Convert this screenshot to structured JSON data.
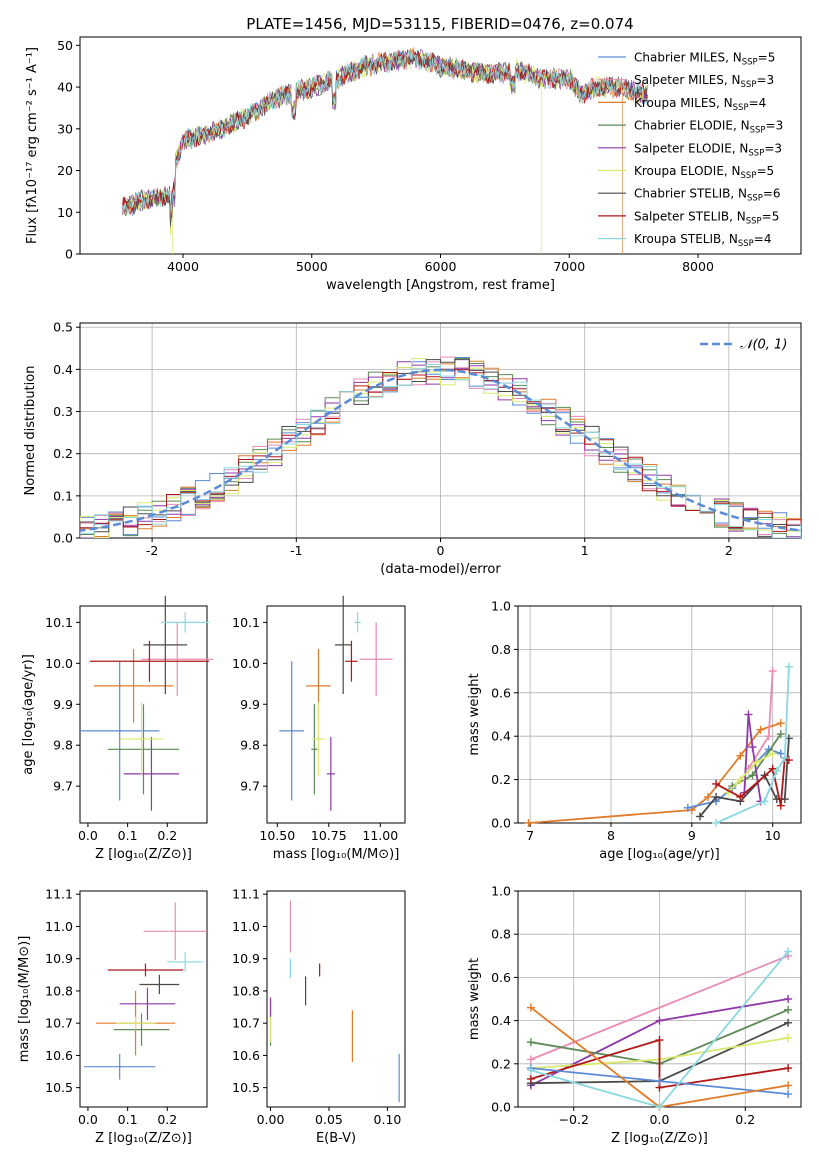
{
  "title": "PLATE=1456, MJD=53115, FIBERID=0476, z=0.074",
  "colors": {
    "chab_miles": "#5b8bd6",
    "salp_miles": "#e88cb5",
    "krou_miles": "#e07b2a",
    "chab_elodie": "#5d8a55",
    "salp_elodie": "#8f38a8",
    "krou_elodie": "#d9e86a",
    "chab_stelib": "#4a4a4a",
    "salp_stelib": "#b01818",
    "krou_stelib": "#8ad8e0",
    "axis": "#000000",
    "grid": "#b0b0b0"
  },
  "chart_data": [
    {
      "id": "spectrum",
      "type": "line",
      "xlabel": "wavelength [Angstrom, rest frame]",
      "ylabel": "Flux [fλ10⁻¹⁷ erg cm⁻² s⁻¹ A⁻¹]",
      "xlim": [
        3200,
        8800
      ],
      "ylim": [
        0,
        52
      ],
      "xticks": [
        4000,
        5000,
        6000,
        7000,
        8000
      ],
      "yticks": [
        0,
        10,
        20,
        30,
        40,
        50
      ],
      "grid": false,
      "legend_position": "top-right",
      "continuum": {
        "x": [
          3530,
          3700,
          3900,
          3920,
          4000,
          4100,
          4300,
          4500,
          4700,
          5000,
          5200,
          5400,
          5600,
          5800,
          6000,
          6200,
          6400,
          6600,
          6800,
          7000,
          7100,
          7200,
          7400,
          7600
        ],
        "y": [
          11,
          13,
          14,
          20,
          27,
          28,
          30,
          33,
          37,
          40,
          42,
          45,
          46,
          47,
          45,
          44,
          43,
          44,
          42,
          42,
          38,
          40,
          40,
          38
        ]
      },
      "series": [
        {
          "name": "Chabrier MILES, N_SSP=5",
          "label_main": "Chabrier MILES, N",
          "label_sub": "SSP",
          "label_tail": "=5",
          "color_key": "chab_miles"
        },
        {
          "name": "Salpeter MILES, N_SSP=3",
          "label_main": "Salpeter MILES, N",
          "label_sub": "SSP",
          "label_tail": "=3",
          "color_key": "salp_miles"
        },
        {
          "name": "Kroupa MILES, N_SSP=4",
          "label_main": "Kroupa MILES, N",
          "label_sub": "SSP",
          "label_tail": "=4",
          "color_key": "krou_miles"
        },
        {
          "name": "Chabrier ELODIE, N_SSP=3",
          "label_main": "Chabrier ELODIE, N",
          "label_sub": "SSP",
          "label_tail": "=3",
          "color_key": "chab_elodie"
        },
        {
          "name": "Salpeter ELODIE, N_SSP=3",
          "label_main": "Salpeter ELODIE, N",
          "label_sub": "SSP",
          "label_tail": "=3",
          "color_key": "salp_elodie"
        },
        {
          "name": "Kroupa ELODIE, N_SSP=5",
          "label_main": "Kroupa ELODIE, N",
          "label_sub": "SSP",
          "label_tail": "=5",
          "color_key": "krou_elodie"
        },
        {
          "name": "Chabrier STELIB, N_SSP=6",
          "label_main": "Chabrier STELIB, N",
          "label_sub": "SSP",
          "label_tail": "=6",
          "color_key": "chab_stelib"
        },
        {
          "name": "Salpeter STELIB, N_SSP=5",
          "label_main": "Salpeter STELIB, N",
          "label_sub": "SSP",
          "label_tail": "=5",
          "color_key": "salp_stelib"
        },
        {
          "name": "Kroupa STELIB, N_SSP=4",
          "label_main": "Kroupa STELIB, N",
          "label_sub": "SSP",
          "label_tail": "=4",
          "color_key": "krou_stelib"
        }
      ],
      "drops": [
        {
          "x": 3920,
          "color_key": "krou_elodie"
        },
        {
          "x": 6780,
          "color_key": "krou_elodie"
        },
        {
          "x": 7410,
          "color_key": "krou_miles"
        }
      ]
    },
    {
      "id": "residuals",
      "type": "histogram",
      "xlabel": "(data-model)/error",
      "ylabel": "Normed distribution",
      "xlim": [
        -2.5,
        2.5
      ],
      "ylim": [
        0,
        0.51
      ],
      "xticks": [
        -2,
        -1,
        0,
        1,
        2
      ],
      "yticks": [
        0.0,
        0.1,
        0.2,
        0.3,
        0.4,
        0.5
      ],
      "grid": true,
      "bin_width": 0.1,
      "legend": "𝒩(0, 1)",
      "legend_position": "top-right",
      "gaussian": {
        "mean": 0,
        "sigma": 1,
        "color": "#5b8bd6"
      }
    },
    {
      "id": "z_age",
      "type": "errorbar",
      "xlabel": "Z [log₁₀(Z/Z⊙)]",
      "ylabel": "age  [log₁₀(age/yr)]",
      "xlim": [
        -0.02,
        0.3
      ],
      "ylim": [
        9.61,
        10.14
      ],
      "xticks": [
        0.0,
        0.1,
        0.2
      ],
      "yticks": [
        9.7,
        9.8,
        9.9,
        10.0,
        10.1
      ],
      "points": [
        {
          "color_key": "chab_miles",
          "x": 0.08,
          "xerr": 0.1,
          "y": 9.835,
          "yerr": 0.17
        },
        {
          "color_key": "salp_miles",
          "x": 0.225,
          "xerr": 0.09,
          "y": 10.01,
          "yerr": 0.09
        },
        {
          "color_key": "krou_miles",
          "x": 0.115,
          "xerr": 0.1,
          "y": 9.945,
          "yerr": 0.09
        },
        {
          "color_key": "chab_elodie",
          "x": 0.14,
          "xerr": 0.09,
          "y": 9.79,
          "yerr": 0.11
        },
        {
          "color_key": "salp_elodie",
          "x": 0.16,
          "xerr": 0.07,
          "y": 9.73,
          "yerr": 0.09
        },
        {
          "color_key": "krou_elodie",
          "x": 0.135,
          "xerr": 0.055,
          "y": 9.815,
          "yerr": 0.09
        },
        {
          "color_key": "chab_stelib",
          "x": 0.195,
          "xerr": 0.055,
          "y": 10.045,
          "yerr": 0.12
        },
        {
          "color_key": "salp_stelib",
          "x": 0.155,
          "xerr": 0.15,
          "y": 10.005,
          "yerr": 0.05
        },
        {
          "color_key": "krou_stelib",
          "x": 0.245,
          "xerr": 0.06,
          "y": 10.1,
          "yerr": 0.025
        }
      ]
    },
    {
      "id": "mass_age",
      "type": "errorbar",
      "xlabel": "mass [log₁₀(M/M⊙)]",
      "ylabel": "",
      "xlim": [
        10.45,
        11.12
      ],
      "ylim": [
        9.61,
        10.14
      ],
      "xticks": [
        10.5,
        10.75,
        11.0
      ],
      "xtick_labels": [
        "10.50",
        "10.75",
        "11.00"
      ],
      "yticks": [
        9.7,
        9.8,
        9.9,
        10.0,
        10.1
      ],
      "points": [
        {
          "color_key": "chab_miles",
          "x": 10.57,
          "xerr": 0.06,
          "y": 9.835,
          "yerr": 0.17
        },
        {
          "color_key": "salp_miles",
          "x": 10.98,
          "xerr": 0.08,
          "y": 10.01,
          "yerr": 0.09
        },
        {
          "color_key": "krou_miles",
          "x": 10.7,
          "xerr": 0.06,
          "y": 9.945,
          "yerr": 0.09
        },
        {
          "color_key": "chab_elodie",
          "x": 10.68,
          "xerr": 0.015,
          "y": 9.79,
          "yerr": 0.11
        },
        {
          "color_key": "salp_elodie",
          "x": 10.76,
          "xerr": 0.02,
          "y": 9.73,
          "yerr": 0.09
        },
        {
          "color_key": "krou_elodie",
          "x": 10.7,
          "xerr": 0.03,
          "y": 9.815,
          "yerr": 0.09
        },
        {
          "color_key": "chab_stelib",
          "x": 10.82,
          "xerr": 0.04,
          "y": 10.045,
          "yerr": 0.12
        },
        {
          "color_key": "salp_stelib",
          "x": 10.86,
          "xerr": 0.03,
          "y": 10.005,
          "yerr": 0.05
        },
        {
          "color_key": "krou_stelib",
          "x": 10.89,
          "xerr": 0.015,
          "y": 10.1,
          "yerr": 0.025
        }
      ]
    },
    {
      "id": "age_weight",
      "type": "line",
      "xlabel": "age  [log₁₀(age/yr)]",
      "ylabel": "mass weight",
      "xlim": [
        6.85,
        10.35
      ],
      "ylim": [
        0,
        1.0
      ],
      "xticks": [
        7,
        8,
        9,
        10
      ],
      "yticks": [
        0.0,
        0.2,
        0.4,
        0.6,
        0.8,
        1.0
      ],
      "grid": true,
      "lines": [
        {
          "color_key": "krou_miles",
          "x": [
            6.98,
            9.0,
            9.2,
            9.6,
            9.85,
            10.1
          ],
          "y": [
            0.0,
            0.06,
            0.12,
            0.31,
            0.43,
            0.46
          ]
        },
        {
          "color_key": "chab_miles",
          "x": [
            8.95,
            9.3,
            9.5,
            9.95,
            10.1
          ],
          "y": [
            0.07,
            0.1,
            0.16,
            0.34,
            0.32
          ]
        },
        {
          "color_key": "salp_miles",
          "x": [
            9.7,
            9.95,
            10.0
          ],
          "y": [
            0.25,
            0.4,
            0.7
          ]
        },
        {
          "color_key": "chab_elodie",
          "x": [
            9.5,
            9.75,
            10.1
          ],
          "y": [
            0.17,
            0.22,
            0.41
          ]
        },
        {
          "color_key": "salp_elodie",
          "x": [
            9.65,
            9.7,
            9.75,
            9.85
          ],
          "y": [
            0.14,
            0.5,
            0.35,
            0.1
          ]
        },
        {
          "color_key": "krou_elodie",
          "x": [
            9.45,
            9.6,
            9.8,
            10.0
          ],
          "y": [
            0.14,
            0.2,
            0.28,
            0.32
          ]
        },
        {
          "color_key": "chab_stelib",
          "x": [
            9.1,
            9.3,
            9.6,
            9.9,
            10.05,
            10.15,
            10.2
          ],
          "y": [
            0.03,
            0.12,
            0.1,
            0.22,
            0.11,
            0.11,
            0.39
          ]
        },
        {
          "color_key": "salp_stelib",
          "x": [
            9.3,
            9.6,
            10.0,
            10.1,
            10.15,
            10.2
          ],
          "y": [
            0.18,
            0.12,
            0.25,
            0.08,
            0.3,
            0.29
          ]
        },
        {
          "color_key": "krou_stelib",
          "x": [
            9.3,
            9.9,
            10.05,
            10.15,
            10.2
          ],
          "y": [
            0.0,
            0.1,
            0.24,
            0.3,
            0.72
          ]
        }
      ]
    },
    {
      "id": "z_mass",
      "type": "errorbar",
      "xlabel": "Z [log₁₀(Z/Z⊙)]",
      "ylabel": "mass [log₁₀(M/M⊙)]",
      "xlim": [
        -0.02,
        0.3
      ],
      "ylim": [
        10.44,
        11.11
      ],
      "xticks": [
        0.0,
        0.1,
        0.2
      ],
      "yticks": [
        10.5,
        10.6,
        10.7,
        10.8,
        10.9,
        11.0,
        11.1
      ],
      "points": [
        {
          "color_key": "chab_miles",
          "x": 0.08,
          "xerr": 0.09,
          "y": 10.565,
          "yerr": 0.04
        },
        {
          "color_key": "salp_miles",
          "x": 0.22,
          "xerr": 0.08,
          "y": 10.985,
          "yerr": 0.09
        },
        {
          "color_key": "krou_miles",
          "x": 0.12,
          "xerr": 0.1,
          "y": 10.7,
          "yerr": 0.1
        },
        {
          "color_key": "chab_elodie",
          "x": 0.135,
          "xerr": 0.07,
          "y": 10.68,
          "yerr": 0.05
        },
        {
          "color_key": "salp_elodie",
          "x": 0.15,
          "xerr": 0.07,
          "y": 10.76,
          "yerr": 0.05
        },
        {
          "color_key": "krou_elodie",
          "x": 0.12,
          "xerr": 0.05,
          "y": 10.7,
          "yerr": 0.02
        },
        {
          "color_key": "chab_stelib",
          "x": 0.18,
          "xerr": 0.05,
          "y": 10.82,
          "yerr": 0.03
        },
        {
          "color_key": "salp_stelib",
          "x": 0.145,
          "xerr": 0.095,
          "y": 10.865,
          "yerr": 0.02
        },
        {
          "color_key": "krou_stelib",
          "x": 0.245,
          "xerr": 0.045,
          "y": 10.89,
          "yerr": 0.03
        }
      ]
    },
    {
      "id": "ebv_mass",
      "type": "errorbar",
      "xlabel": "E(B-V)",
      "ylabel": "",
      "xlim": [
        -0.003,
        0.115
      ],
      "ylim": [
        10.44,
        11.11
      ],
      "xticks": [
        0.0,
        0.05,
        0.1
      ],
      "xtick_labels": [
        "0.00",
        "0.05",
        "0.10"
      ],
      "yticks": [
        10.5,
        10.6,
        10.7,
        10.8,
        10.9,
        11.0,
        11.1
      ],
      "points": [
        {
          "color_key": "chab_miles",
          "x": 0.11,
          "y": 10.53,
          "yerr": 0.075
        },
        {
          "color_key": "salp_miles",
          "x": 0.017,
          "y": 11.0,
          "yerr": 0.08
        },
        {
          "color_key": "krou_miles",
          "x": 0.07,
          "y": 10.66,
          "yerr": 0.08
        },
        {
          "color_key": "chab_elodie",
          "x": 0.0,
          "y": 10.7,
          "yerr": 0.07
        },
        {
          "color_key": "salp_elodie",
          "x": 0.0,
          "y": 10.75,
          "yerr": 0.03
        },
        {
          "color_key": "krou_elodie",
          "x": 0.0,
          "y": 10.68,
          "yerr": 0.04
        },
        {
          "color_key": "chab_stelib",
          "x": 0.03,
          "y": 10.8,
          "yerr": 0.045
        },
        {
          "color_key": "salp_stelib",
          "x": 0.042,
          "y": 10.865,
          "yerr": 0.02
        },
        {
          "color_key": "krou_stelib",
          "x": 0.017,
          "y": 10.87,
          "yerr": 0.03
        }
      ]
    },
    {
      "id": "z_weight",
      "type": "line",
      "xlabel": "Z [log₁₀(Z/Z⊙)]",
      "ylabel": "mass weight",
      "xlim": [
        -0.33,
        0.33
      ],
      "ylim": [
        0,
        1.0
      ],
      "xticks": [
        -0.2,
        0.0,
        0.2
      ],
      "xtick_labels": [
        "−0.2",
        "0.0",
        "0.2"
      ],
      "yticks": [
        0.0,
        0.2,
        0.4,
        0.6,
        0.8,
        1.0
      ],
      "grid": true,
      "lines": [
        {
          "color_key": "salp_miles",
          "x": [
            -0.3,
            0.3
          ],
          "y": [
            0.22,
            0.7
          ]
        },
        {
          "color_key": "salp_elodie",
          "x": [
            -0.3,
            0.0,
            0.3
          ],
          "y": [
            0.1,
            0.4,
            0.5
          ]
        },
        {
          "color_key": "chab_elodie",
          "x": [
            -0.3,
            0.0,
            0.3
          ],
          "y": [
            0.3,
            0.2,
            0.45
          ]
        },
        {
          "color_key": "chab_stelib",
          "x": [
            -0.3,
            0.0,
            0.3
          ],
          "y": [
            0.11,
            0.12,
            0.39
          ]
        },
        {
          "color_key": "krou_elodie",
          "x": [
            -0.3,
            0.0,
            0.3
          ],
          "y": [
            0.18,
            0.22,
            0.32
          ]
        },
        {
          "color_key": "salp_stelib",
          "x": [
            -0.3,
            0.0,
            0.0,
            0.3
          ],
          "y": [
            0.13,
            0.31,
            0.09,
            0.18
          ]
        },
        {
          "color_key": "chab_miles",
          "x": [
            -0.3,
            0.0,
            0.3
          ],
          "y": [
            0.18,
            0.12,
            0.06
          ]
        },
        {
          "color_key": "krou_miles",
          "x": [
            -0.3,
            0.0,
            0.3
          ],
          "y": [
            0.46,
            0.0,
            0.1
          ]
        },
        {
          "color_key": "krou_stelib",
          "x": [
            -0.3,
            0.0,
            0.3
          ],
          "y": [
            0.17,
            0.0,
            0.72
          ]
        }
      ]
    }
  ]
}
